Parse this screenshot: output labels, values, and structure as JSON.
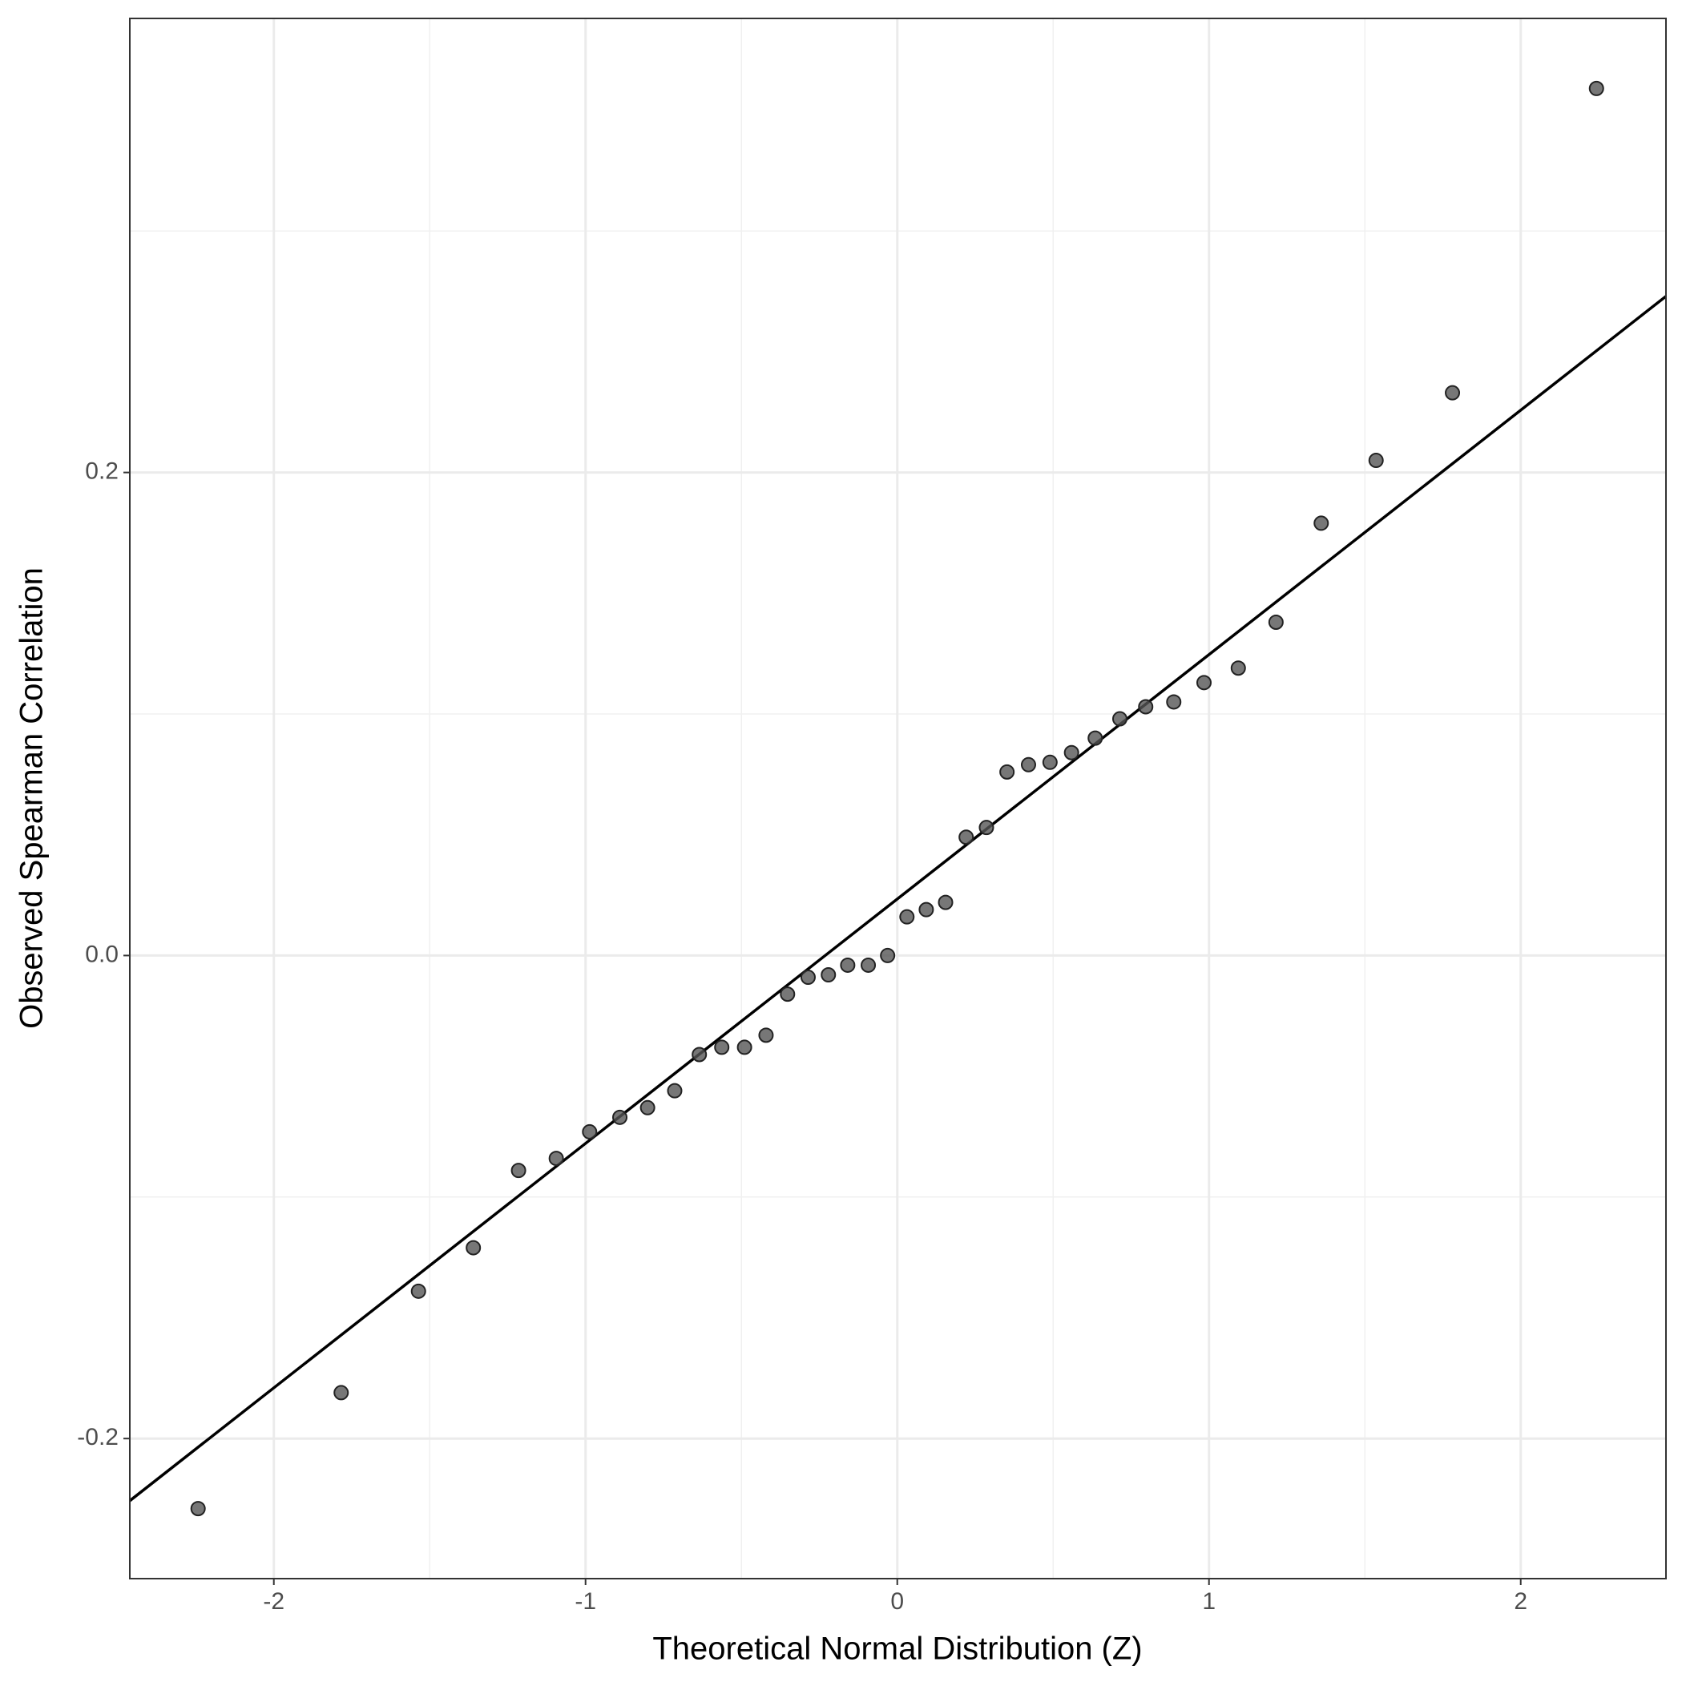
{
  "chart_data": {
    "type": "scatter",
    "x_label": "Theoretical Normal Distribution (Z)",
    "y_label": "Observed Spearman Correlation",
    "x": [
      -2.243,
      -1.784,
      -1.536,
      -1.36,
      -1.215,
      -1.094,
      -0.987,
      -0.89,
      -0.801,
      -0.714,
      -0.635,
      -0.563,
      -0.49,
      -0.421,
      -0.352,
      -0.286,
      -0.221,
      -0.159,
      -0.093,
      -0.031,
      0.031,
      0.093,
      0.155,
      0.221,
      0.286,
      0.352,
      0.421,
      0.49,
      0.559,
      0.635,
      0.714,
      0.797,
      0.887,
      0.984,
      1.094,
      1.215,
      1.36,
      1.536,
      1.781,
      2.243
    ],
    "values": [
      -0.229,
      -0.181,
      -0.139,
      -0.121,
      -0.089,
      -0.084,
      -0.073,
      -0.067,
      -0.063,
      -0.056,
      -0.041,
      -0.038,
      -0.038,
      -0.033,
      -0.016,
      -0.009,
      -0.008,
      -0.004,
      -0.004,
      0.0,
      0.016,
      0.019,
      0.022,
      0.049,
      0.053,
      0.076,
      0.079,
      0.08,
      0.084,
      0.09,
      0.098,
      0.103,
      0.105,
      0.113,
      0.119,
      0.138,
      0.179,
      0.205,
      0.233,
      0.359
    ],
    "color": "#555555",
    "reference_line": {
      "slope": 0.1012,
      "intercept": 0.0234,
      "color": "#000000"
    },
    "xlim": [
      -2.462,
      2.466
    ],
    "ylim": [
      -0.258,
      0.388
    ],
    "xticks": [
      -2,
      -1,
      0,
      1,
      2
    ],
    "yticks": [
      -0.2,
      {
        "value": 0,
        "label": "0.0"
      },
      0.2
    ],
    "grid": true
  }
}
